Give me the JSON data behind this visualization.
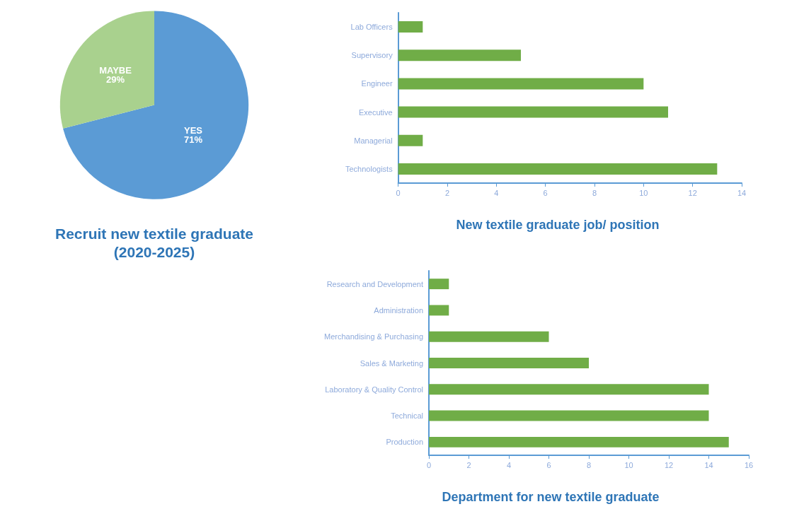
{
  "chart_data": [
    {
      "type": "pie",
      "title": "Recruit new textile graduate\n(2020-2025)",
      "categories": [
        "YES",
        "MAYBE"
      ],
      "values": [
        71,
        29
      ],
      "colors": [
        "#5b9bd5",
        "#a9d18e"
      ],
      "value_labels": [
        "71%",
        "29%"
      ],
      "legend": false
    },
    {
      "type": "bar",
      "orientation": "horizontal",
      "title": "New textile graduate job/ position",
      "categories": [
        "Lab Officers",
        "Supervisory",
        "Engineer",
        "Executive",
        "Managerial",
        "Technologists"
      ],
      "values": [
        1,
        5,
        10,
        11,
        1,
        13
      ],
      "color": "#70ad47",
      "xlim": [
        0,
        14
      ],
      "xticks": [
        0,
        2,
        4,
        6,
        8,
        10,
        12,
        14
      ],
      "grid": false,
      "legend": false
    },
    {
      "type": "bar",
      "orientation": "horizontal",
      "title": "Department for new textile graduate",
      "categories": [
        "Research and Development",
        "Administration",
        "Merchandising & Purchasing",
        "Sales & Marketing",
        "Laboratory & Quality Control",
        "Technical",
        "Production"
      ],
      "values": [
        1,
        1,
        6,
        8,
        14,
        14,
        15
      ],
      "color": "#70ad47",
      "xlim": [
        0,
        16
      ],
      "xticks": [
        0,
        2,
        4,
        6,
        8,
        10,
        12,
        14,
        16
      ],
      "grid": false,
      "legend": false
    }
  ]
}
